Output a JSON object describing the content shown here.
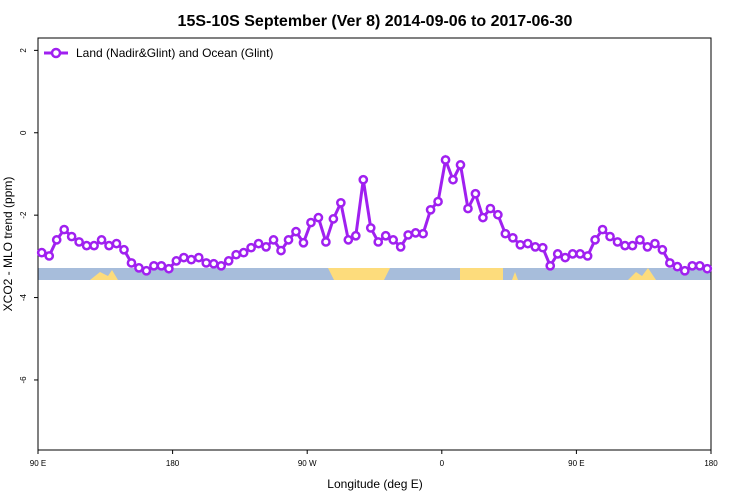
{
  "chart_data": {
    "type": "line",
    "title": "15S-10S September (Ver 8)   2014-09-06 to 2017-06-30",
    "xlabel": "Longitude (deg E)",
    "ylabel": "XCO2 - MLO trend (ppm)",
    "xlim": [
      90,
      540
    ],
    "ylim": [
      -7.7,
      2.3
    ],
    "xticks": [
      {
        "value": 90,
        "label": "90 E"
      },
      180,
      {
        "value": 270,
        "label": "90 W"
      },
      {
        "value": 360,
        "label": "0"
      },
      {
        "value": 450,
        "label": "90 E"
      },
      {
        "value": 540,
        "label": "180"
      }
    ],
    "yticks": [
      2,
      0,
      -2,
      -4,
      -6
    ],
    "legend": "upper left",
    "x": [
      92.5,
      97.5,
      102.5,
      107.5,
      112.5,
      117.5,
      122.5,
      127.5,
      132.5,
      137.5,
      142.5,
      147.5,
      152.5,
      157.5,
      162.5,
      167.5,
      172.5,
      177.5,
      182.5,
      187.5,
      192.5,
      197.5,
      202.5,
      207.5,
      212.5,
      217.5,
      222.5,
      227.5,
      232.5,
      237.5,
      242.5,
      247.5,
      252.5,
      257.5,
      262.5,
      267.5,
      272.5,
      277.5,
      282.5,
      287.5,
      292.5,
      297.5,
      302.5,
      307.5,
      312.5,
      317.5,
      322.5,
      327.5,
      332.5,
      337.5,
      342.5,
      347.5,
      352.5,
      357.5,
      362.5,
      367.5,
      372.5,
      377.5,
      382.5,
      387.5,
      392.5,
      397.5,
      402.5,
      407.5,
      412.5,
      417.5,
      422.5,
      427.5,
      432.5,
      437.5,
      442.5,
      447.5,
      452.5,
      457.5,
      462.5,
      467.5,
      472.5,
      477.5,
      482.5,
      487.5,
      492.5,
      497.5,
      502.5,
      507.5,
      512.5,
      517.5,
      522.5,
      527.5,
      532.5,
      537.5
    ],
    "series": [
      {
        "name": "Land (Nadir&Glint) and Ocean (Glint)",
        "color": "#a020f0",
        "values": [
          -2.91,
          -2.99,
          -2.6,
          -2.35,
          -2.52,
          -2.65,
          -2.74,
          -2.74,
          -2.6,
          -2.74,
          -2.69,
          -2.84,
          -3.16,
          -3.28,
          -3.35,
          -3.23,
          -3.23,
          -3.3,
          -3.11,
          -3.03,
          -3.08,
          -3.03,
          -3.16,
          -3.18,
          -3.23,
          -3.11,
          -2.96,
          -2.91,
          -2.79,
          -2.69,
          -2.77,
          -2.6,
          -2.86,
          -2.6,
          -2.4,
          -2.67,
          -2.18,
          -2.06,
          -2.65,
          -2.09,
          -1.7,
          -2.6,
          -2.5,
          -1.14,
          -2.31,
          -2.65,
          -2.5,
          -2.6,
          -2.77,
          -2.48,
          -2.43,
          -2.45,
          -1.87,
          -1.67,
          -0.66,
          -1.14,
          -0.78,
          -1.84,
          -1.48,
          -2.06,
          -1.84,
          -1.99,
          -2.45,
          -2.55,
          -2.72,
          -2.69,
          -2.77,
          -2.79,
          -3.23,
          -2.94,
          -3.03,
          -2.94,
          -2.94,
          -2.99,
          -2.6,
          -2.35,
          -2.52,
          -2.65,
          -2.74,
          -2.74,
          -2.6,
          -2.77,
          -2.69,
          -2.84,
          -3.16,
          -3.25,
          -3.35,
          -3.23,
          -3.23,
          -3.3
        ]
      }
    ]
  }
}
